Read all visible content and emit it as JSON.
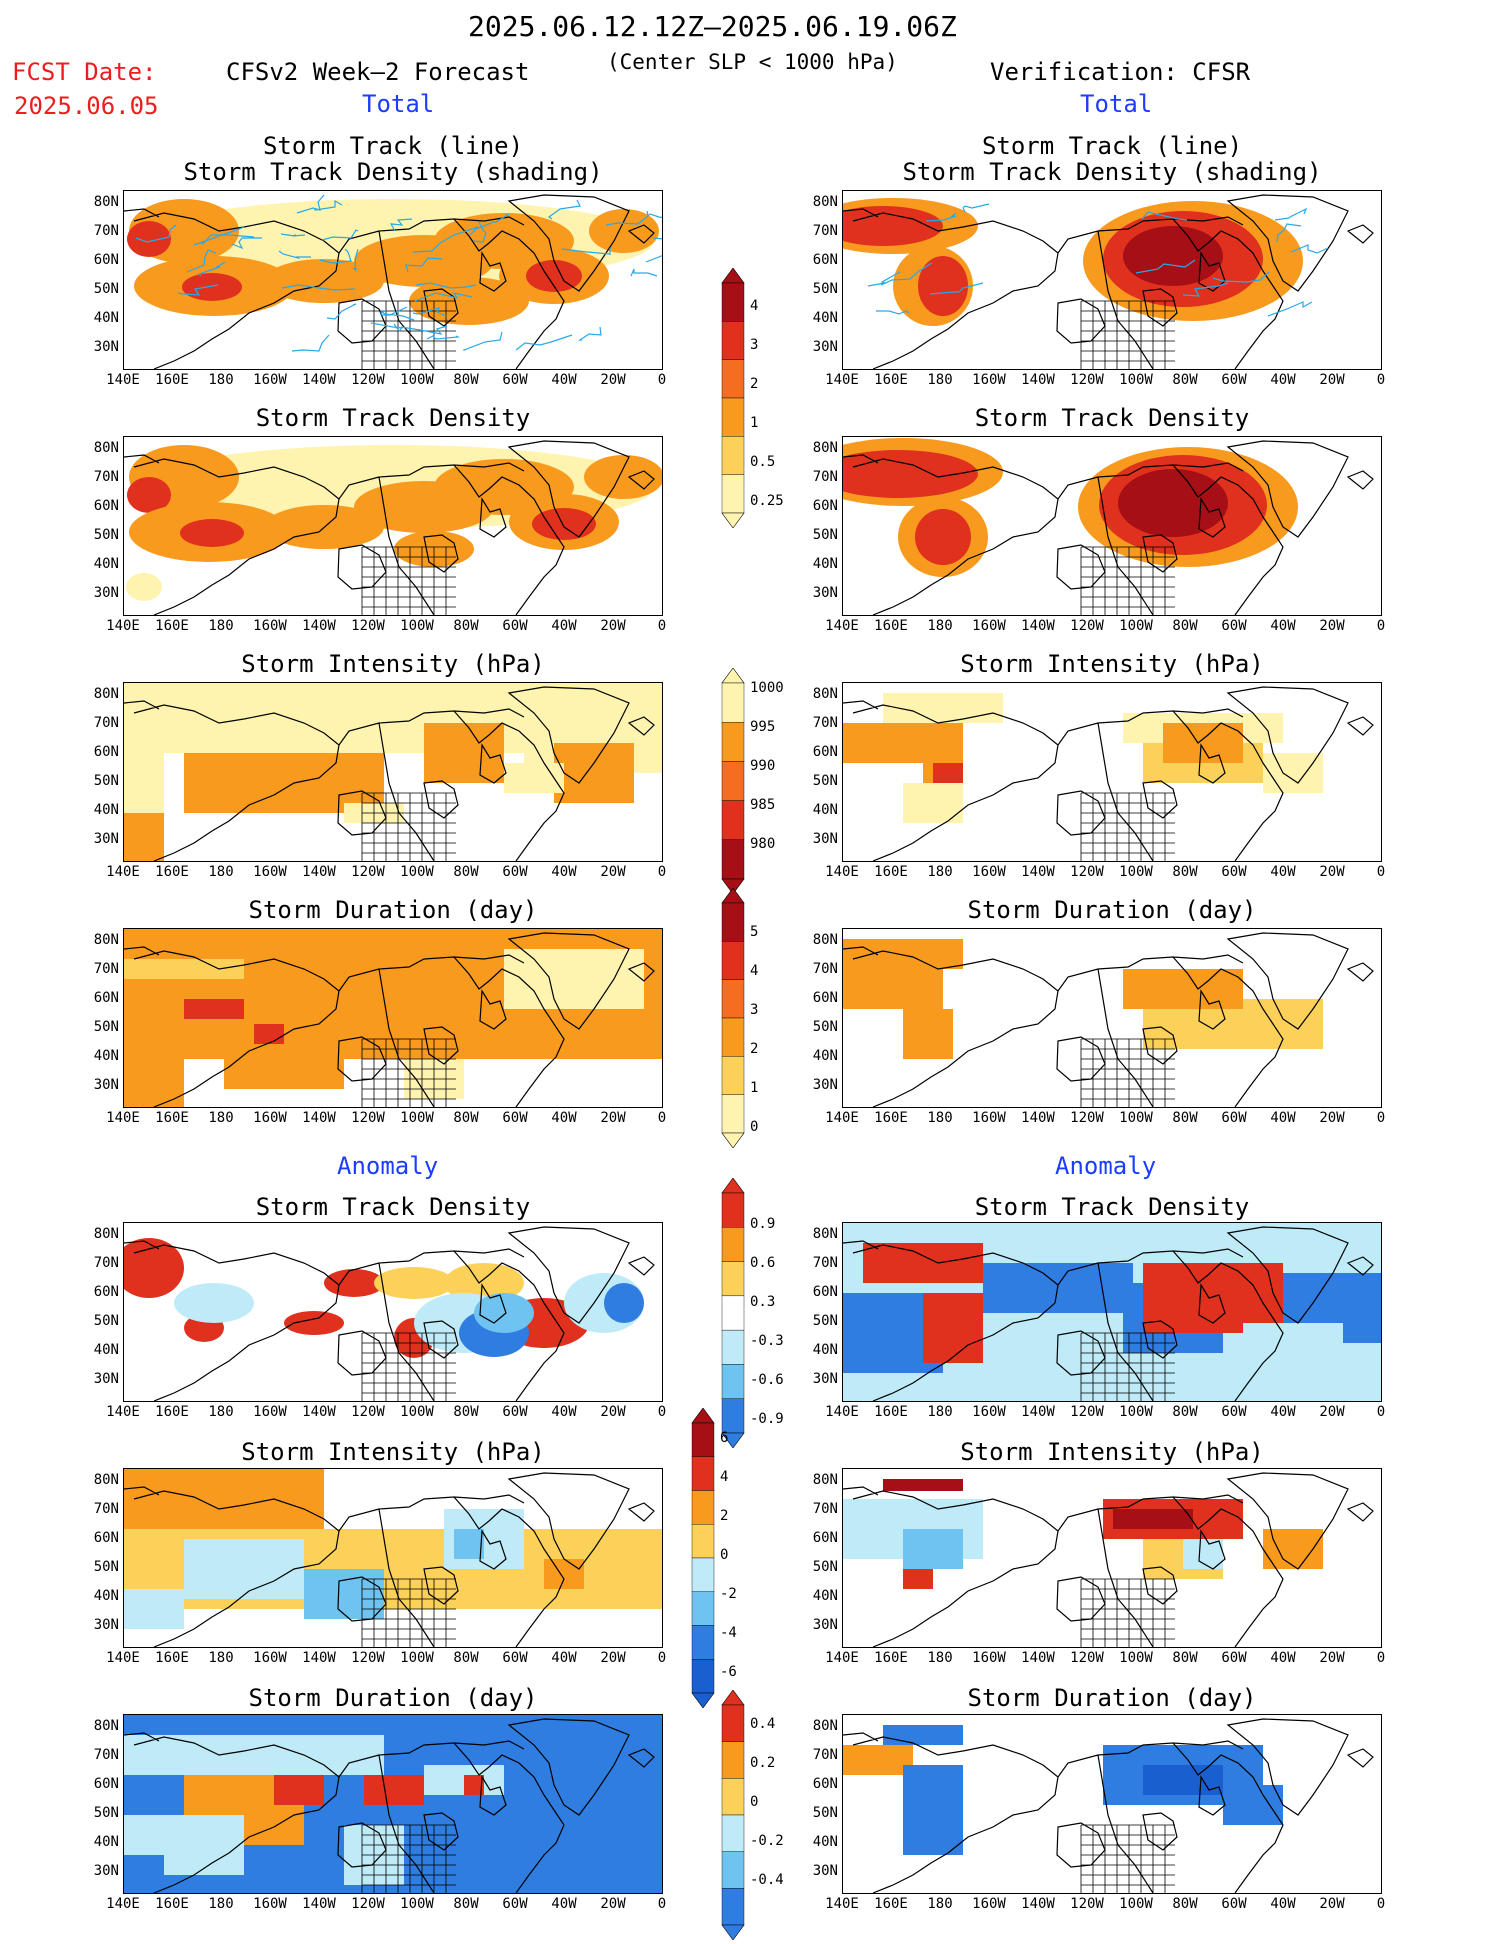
{
  "header": {
    "period": "2025.06.12.12Z–2025.06.19.06Z",
    "fcst_label": "FCST Date:",
    "fcst_date": "2025.06.05",
    "left_title": "CFSv2 Week–2 Forecast",
    "center_note": "(Center SLP < 1000 hPa)",
    "right_title": "Verification: CFSR",
    "total_label": "Total",
    "anomaly_label": "Anomaly"
  },
  "panel_titles": {
    "track_line": "Storm Track (line)",
    "track_density_shading": "Storm Track Density (shading)",
    "track_density": "Storm Track Density",
    "intensity": "Storm Intensity (hPa)",
    "duration": "Storm Duration (day)"
  },
  "lat_labels": [
    "80N",
    "70N",
    "60N",
    "50N",
    "40N",
    "30N"
  ],
  "lon_labels": [
    "140E",
    "160E",
    "180",
    "160W",
    "140W",
    "120W",
    "100W",
    "80W",
    "60W",
    "40W",
    "20W",
    "0"
  ],
  "colorbars": {
    "density": {
      "labels": [
        "4",
        "3",
        "2",
        "1",
        "0.5",
        "0.25"
      ],
      "colors": [
        "#a50f15",
        "#e0301e",
        "#f46d20",
        "#f89a1e",
        "#fcd15a",
        "#fff3b0"
      ]
    },
    "intensity": {
      "labels": [
        "1000",
        "995",
        "990",
        "985",
        "980"
      ],
      "colors": [
        "#fff3b0",
        "#f89a1e",
        "#f46d20",
        "#e0301e",
        "#a50f15"
      ]
    },
    "duration": {
      "labels": [
        "5",
        "4",
        "3",
        "2",
        "1",
        "0"
      ],
      "colors": [
        "#a50f15",
        "#e0301e",
        "#f46d20",
        "#f89a1e",
        "#fcd15a",
        "#fff3b0"
      ]
    },
    "anom_density": {
      "labels": [
        "0.9",
        "0.6",
        "0.3",
        "-0.3",
        "-0.6",
        "-0.9"
      ],
      "colors": [
        "#e0301e",
        "#f89a1e",
        "#fcd15a",
        "#ffffff",
        "#bfeaf7",
        "#6ec3f0",
        "#2f7de0"
      ]
    },
    "anom_intensity": {
      "labels": [
        "6",
        "4",
        "2",
        "0",
        "-2",
        "-4",
        "-6"
      ],
      "colors": [
        "#a50f15",
        "#e0301e",
        "#f89a1e",
        "#fcd15a",
        "#bfeaf7",
        "#6ec3f0",
        "#2f7de0",
        "#1a5fd0"
      ]
    },
    "anom_duration": {
      "labels": [
        "0.4",
        "0.2",
        "0",
        "-0.2",
        "-0.4"
      ],
      "colors": [
        "#e0301e",
        "#f89a1e",
        "#fcd15a",
        "#bfeaf7",
        "#6ec3f0",
        "#2f7de0"
      ]
    }
  }
}
